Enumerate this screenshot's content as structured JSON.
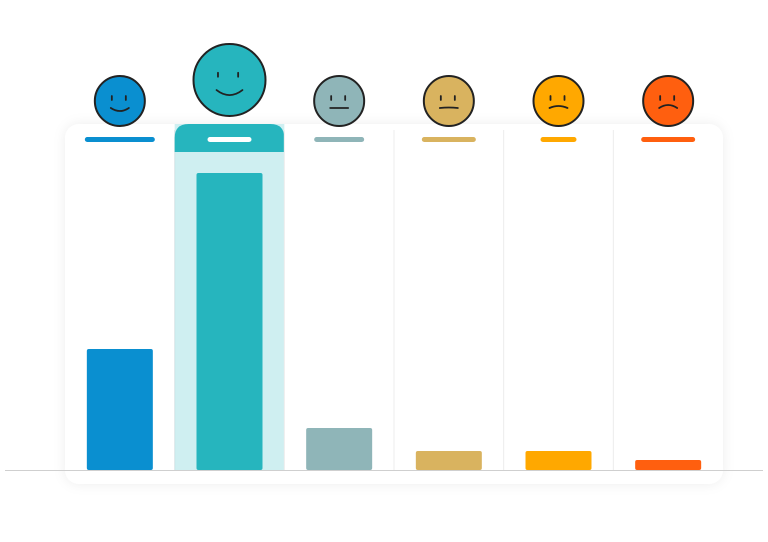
{
  "chart_data": {
    "type": "bar",
    "categories": [
      null,
      null,
      null,
      null,
      null,
      null
    ],
    "values": [
      121,
      297,
      42,
      19,
      19,
      10
    ],
    "colors": [
      "#0a8fd0",
      "#26b5be",
      "#8fb5b8",
      "#d9b35f",
      "#ffa800",
      "#ff5f0f"
    ],
    "ylim": [
      0,
      320
    ],
    "highlight": 1
  }
}
